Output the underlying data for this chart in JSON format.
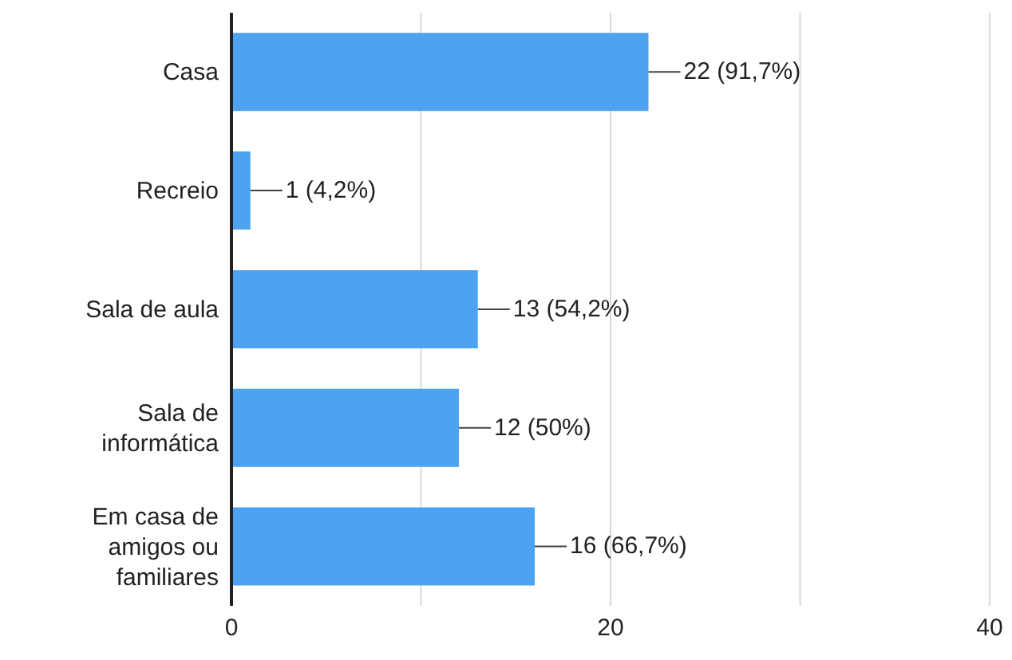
{
  "chart_data": {
    "type": "bar",
    "orientation": "horizontal",
    "categories": [
      "Casa",
      "Recreio",
      "Sala de aula",
      "Sala de informática",
      "Em casa de amigos ou familiares"
    ],
    "values": [
      22,
      1,
      13,
      12,
      16
    ],
    "value_labels": [
      "22 (91,7%)",
      "1 (4,2%)",
      "13 (54,2%)",
      "12 (50%)",
      "16 (66,7%)"
    ],
    "color": "#4da3f0",
    "xlim": [
      0,
      40
    ],
    "xticks": [
      0,
      {
        "value": 10,
        "label": null
      },
      20,
      {
        "value": 30,
        "label": null
      },
      40
    ],
    "grid": "x",
    "legend": false
  }
}
